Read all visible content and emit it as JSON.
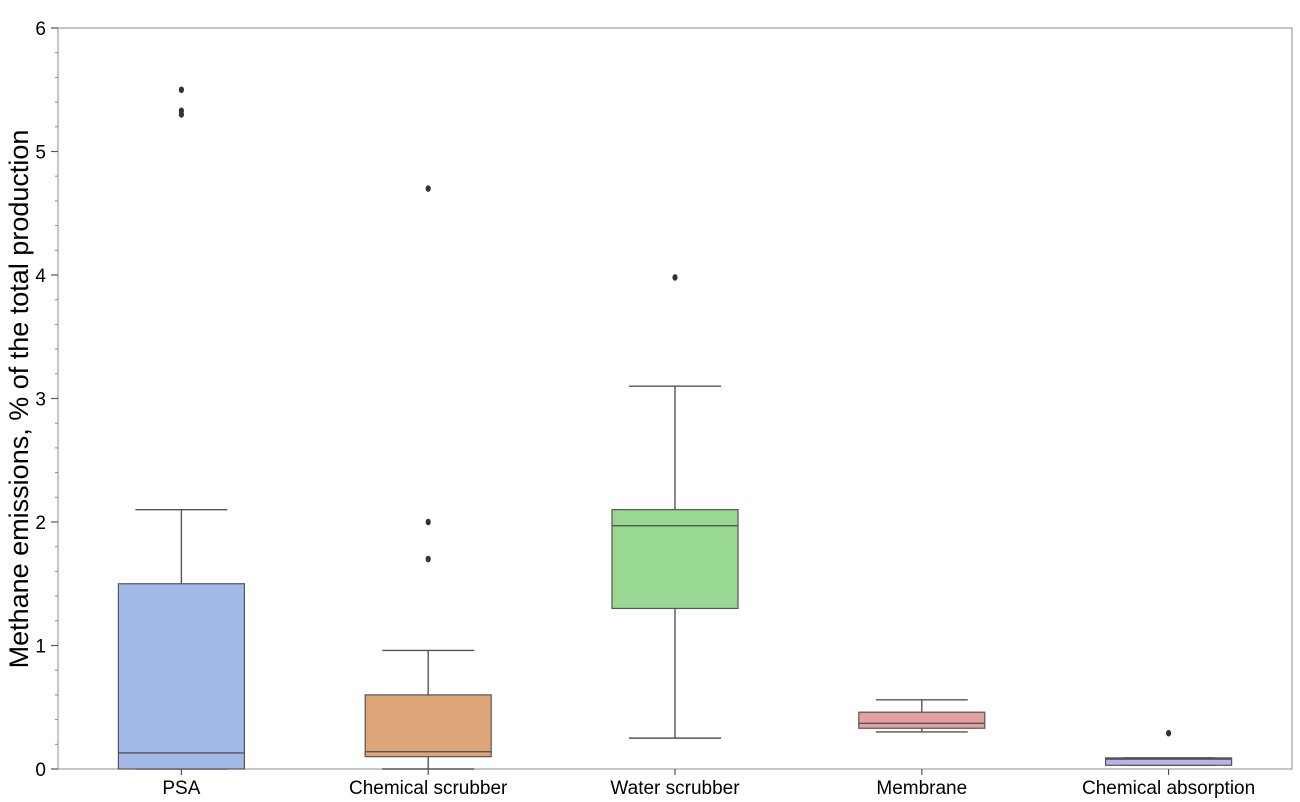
{
  "chart_data": {
    "type": "boxplot",
    "title": "",
    "xlabel": "",
    "ylabel": "Methane emissions, % of the total production",
    "ylim": [
      0,
      6
    ],
    "yticks": [
      0,
      1,
      2,
      3,
      4,
      5,
      6
    ],
    "ytick_labels": [
      "0",
      "1",
      "2",
      "3",
      "4",
      "5",
      "6"
    ],
    "grid": false,
    "legend": "none",
    "categories": [
      "PSA",
      "Chemical scrubber",
      "Water scrubber",
      "Membrane",
      "Chemical absorption"
    ],
    "boxes": [
      {
        "name": "PSA",
        "color": "#a3b9e8",
        "whisker_low": 0.0,
        "q1": 0.0,
        "median": 0.13,
        "q3": 1.5,
        "whisker_high": 2.1,
        "outliers": [
          5.5,
          5.3,
          5.33
        ]
      },
      {
        "name": "Chemical scrubber",
        "color": "#dca678",
        "whisker_low": 0.0,
        "q1": 0.1,
        "median": 0.14,
        "q3": 0.6,
        "whisker_high": 0.96,
        "outliers": [
          4.7,
          2.0,
          1.7
        ]
      },
      {
        "name": "Water scrubber",
        "color": "#99d893",
        "whisker_low": 0.25,
        "q1": 1.3,
        "median": 1.97,
        "q3": 2.1,
        "whisker_high": 3.1,
        "outliers": [
          3.98
        ]
      },
      {
        "name": "Membrane",
        "color": "#e4a1a1",
        "whisker_low": 0.3,
        "q1": 0.33,
        "median": 0.37,
        "q3": 0.46,
        "whisker_high": 0.56,
        "outliers": []
      },
      {
        "name": "Chemical absorption",
        "color": "#bcb2ea",
        "whisker_low": 0.03,
        "q1": 0.03,
        "median": 0.08,
        "q3": 0.09,
        "whisker_high": 0.09,
        "outliers": [
          0.29
        ]
      }
    ]
  }
}
